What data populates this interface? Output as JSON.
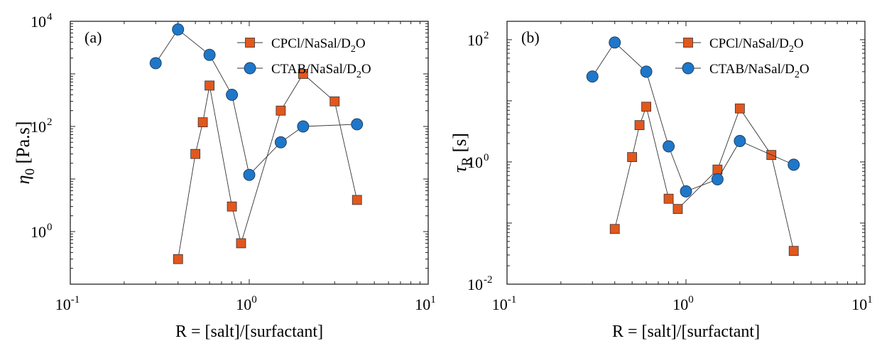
{
  "chart_data": [
    {
      "type": "scatter",
      "panel_label": "(a)",
      "xlabel": "R = [salt]/[surfactant]",
      "ylabel_symbol": "η",
      "ylabel_subscript": "0",
      "ylabel_unit": " [Pa.s]",
      "xscale": "log",
      "yscale": "log",
      "xlim": [
        0.1,
        10
      ],
      "ylim": [
        0.1,
        10000
      ],
      "xticks": [
        {
          "value": 0.1,
          "base": "10",
          "exp": "-1"
        },
        {
          "value": 1,
          "base": "10",
          "exp": "0"
        },
        {
          "value": 10,
          "base": "10",
          "exp": "1"
        }
      ],
      "yticks": [
        {
          "value": 1,
          "base": "10",
          "exp": "0"
        },
        {
          "value": 100,
          "base": "10",
          "exp": "2"
        },
        {
          "value": 10000,
          "base": "10",
          "exp": "4"
        }
      ],
      "legend_position": "top-right",
      "series": [
        {
          "name": "CPCl/NaSal/D",
          "name_sub": "2",
          "name_tail": "O",
          "marker": "square",
          "color": "#e2571e",
          "x": [
            0.4,
            0.5,
            0.55,
            0.6,
            0.8,
            0.9,
            1.5,
            2,
            3,
            4
          ],
          "y": [
            0.3,
            30,
            120,
            600,
            3,
            0.6,
            200,
            1000,
            300,
            4
          ]
        },
        {
          "name": "CTAB/NaSal/D",
          "name_sub": "2",
          "name_tail": "O",
          "marker": "circle",
          "color": "#1f77c9",
          "x": [
            0.3,
            0.4,
            0.6,
            0.8,
            1,
            1.5,
            2,
            4
          ],
          "y": [
            1600,
            7000,
            2300,
            400,
            12,
            50,
            100,
            110
          ]
        }
      ]
    },
    {
      "type": "scatter",
      "panel_label": "(b)",
      "xlabel": "R = [salt]/[surfactant]",
      "ylabel_symbol": "τ",
      "ylabel_subscript": "R",
      "ylabel_unit": " [s]",
      "xscale": "log",
      "yscale": "log",
      "xlim": [
        0.1,
        10
      ],
      "ylim": [
        0.01,
        200
      ],
      "xticks": [
        {
          "value": 0.1,
          "base": "10",
          "exp": "-1"
        },
        {
          "value": 1,
          "base": "10",
          "exp": "0"
        },
        {
          "value": 10,
          "base": "10",
          "exp": "1"
        }
      ],
      "yticks": [
        {
          "value": 0.01,
          "base": "10",
          "exp": "-2"
        },
        {
          "value": 1,
          "base": "10",
          "exp": "0"
        },
        {
          "value": 100,
          "base": "10",
          "exp": "2"
        }
      ],
      "legend_position": "top-right",
      "series": [
        {
          "name": "CPCl/NaSal/D",
          "name_sub": "2",
          "name_tail": "O",
          "marker": "square",
          "color": "#e2571e",
          "x": [
            0.4,
            0.5,
            0.55,
            0.6,
            0.8,
            0.9,
            1.5,
            2,
            3,
            4
          ],
          "y": [
            0.08,
            1.2,
            4,
            8,
            0.25,
            0.17,
            0.75,
            7.5,
            1.3,
            0.035
          ]
        },
        {
          "name": "CTAB/NaSal/D",
          "name_sub": "2",
          "name_tail": "O",
          "marker": "circle",
          "color": "#1f77c9",
          "x": [
            0.3,
            0.4,
            0.6,
            0.8,
            1,
            1.5,
            2,
            4
          ],
          "y": [
            25,
            90,
            30,
            1.8,
            0.33,
            0.52,
            2.2,
            0.9
          ]
        }
      ]
    }
  ]
}
